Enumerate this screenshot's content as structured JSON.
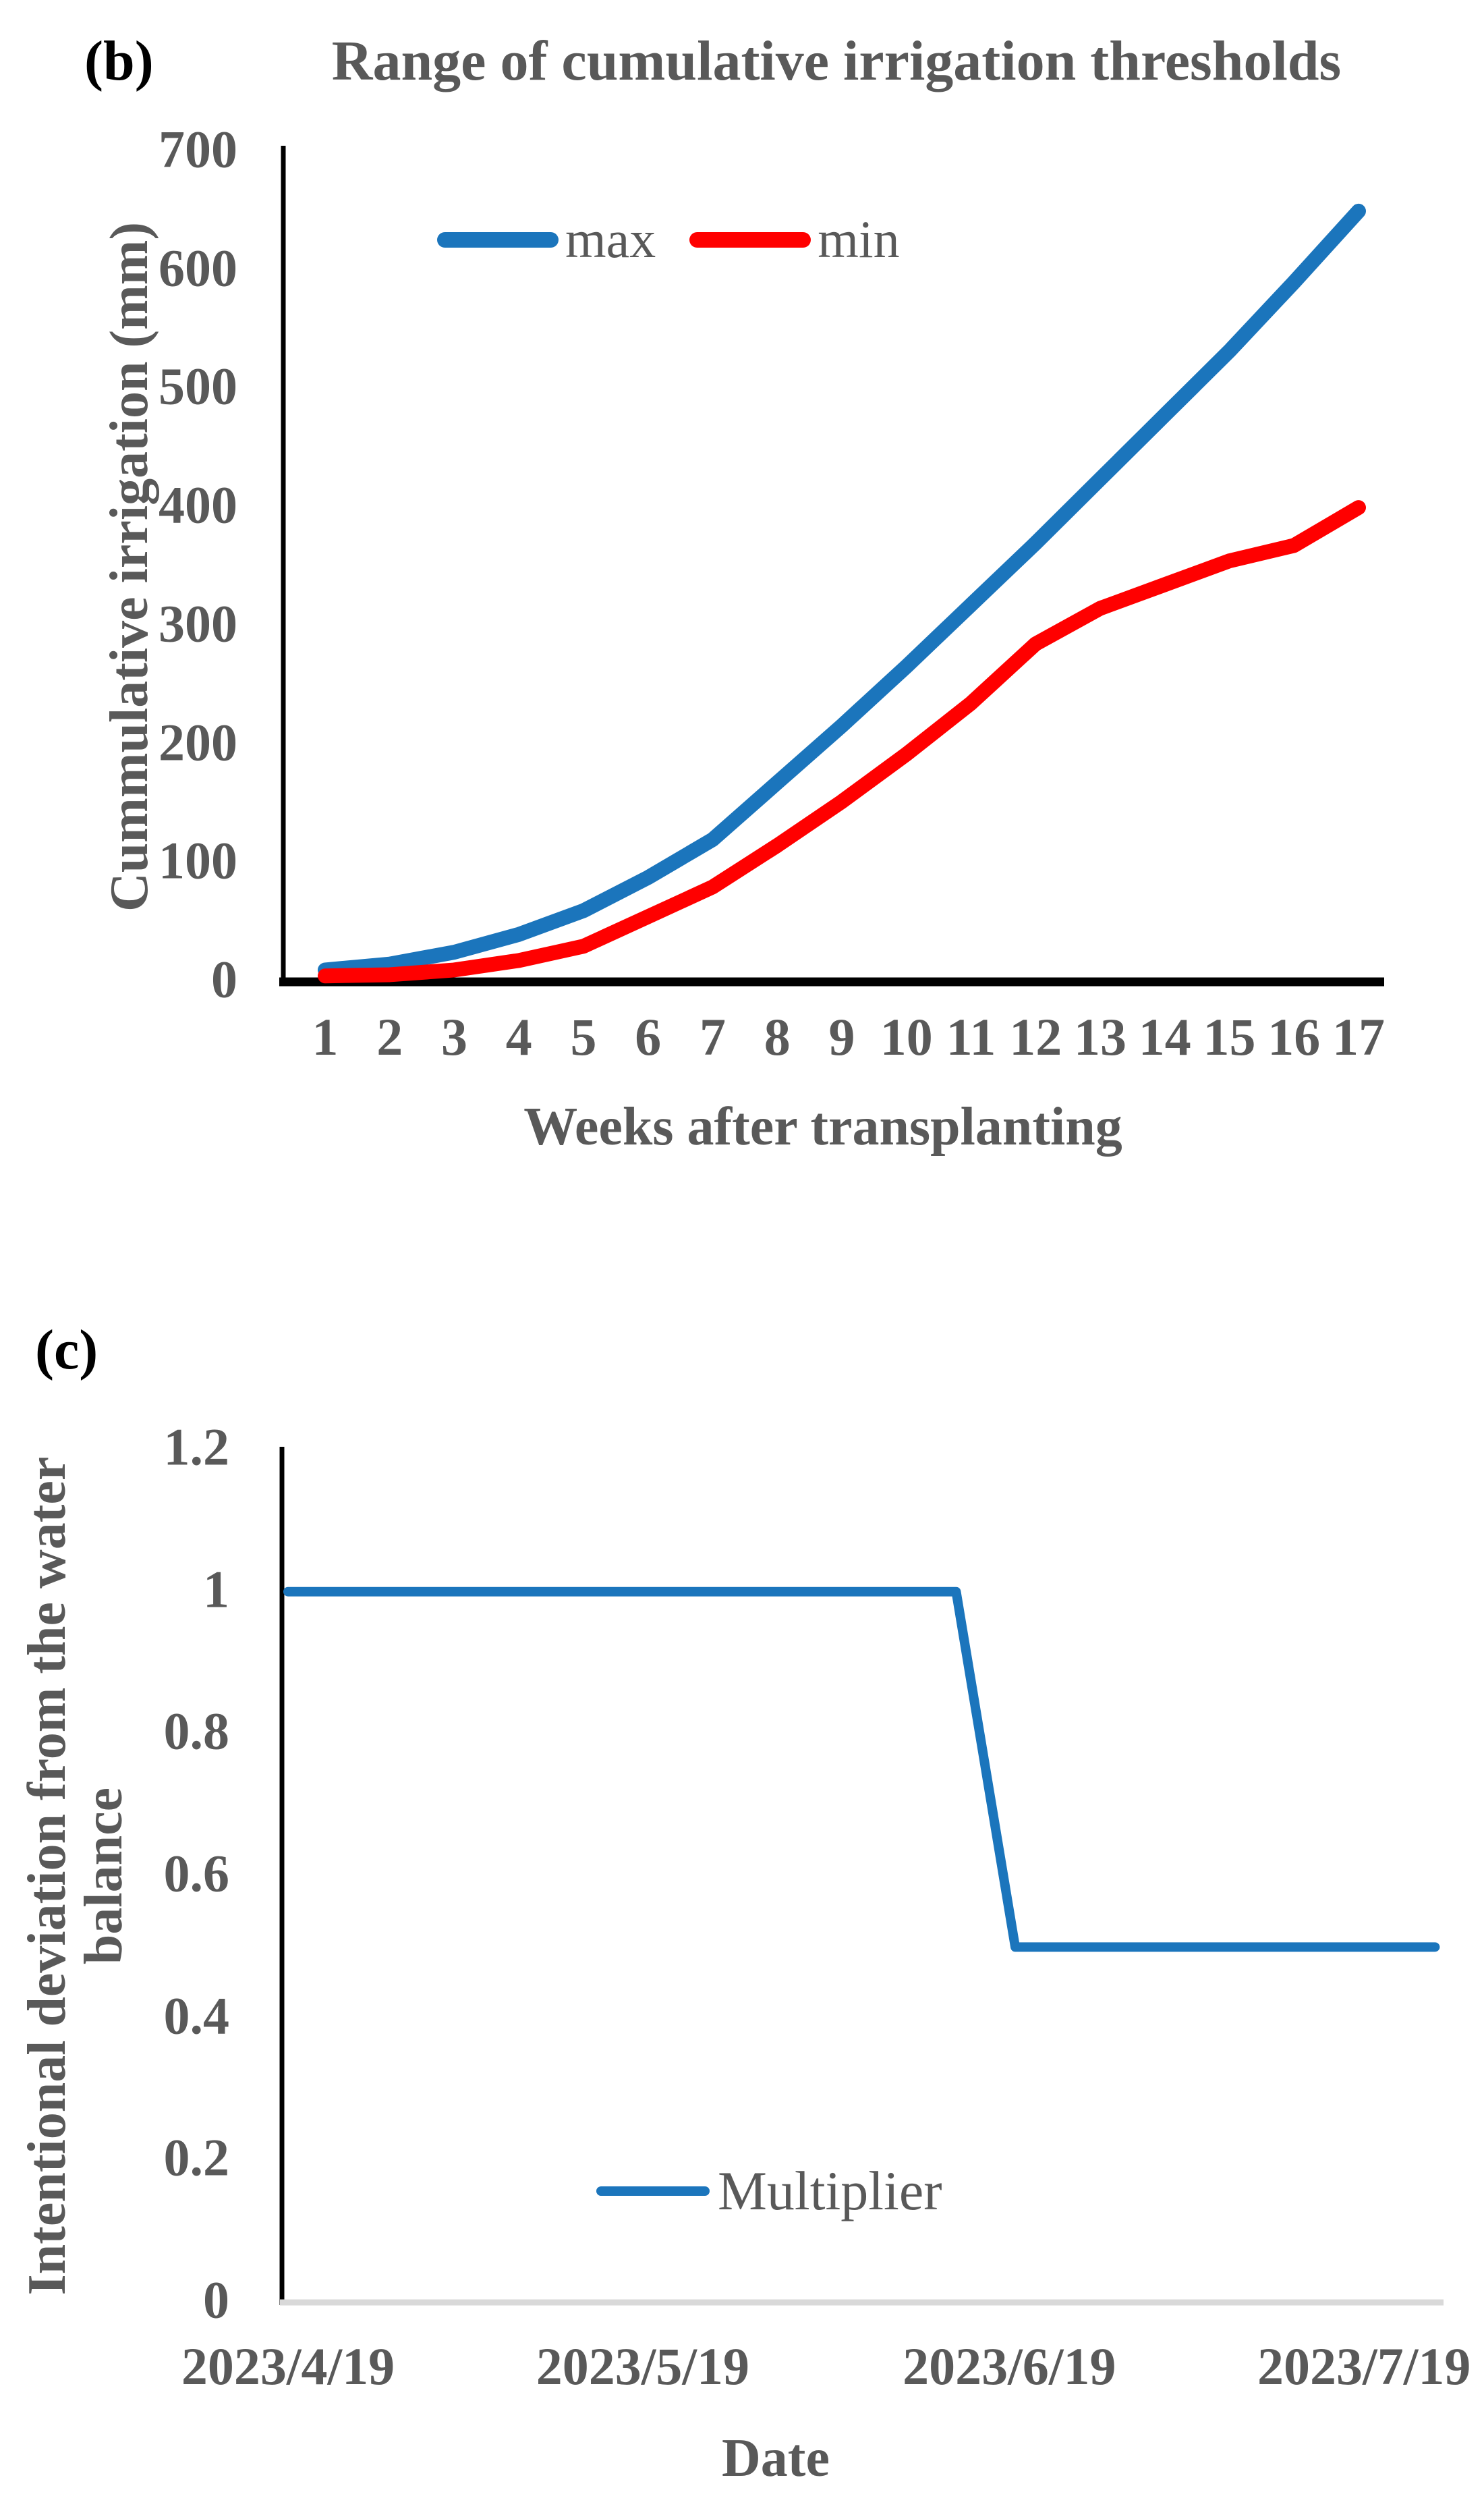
{
  "colors": {
    "max_line": "#1B75BC",
    "min_line": "#FF0000",
    "multiplier_line": "#1B75BC",
    "text_gray": "#595959",
    "axis_black": "#000000",
    "axis_light_gray": "#D9D9D9"
  },
  "chart_b": {
    "panel_label": "(b)",
    "title": "Range of cumulative irrigation thresholds",
    "y_axis_label": "Cummulative irrigation (mm)",
    "x_axis_label": "Weeks after transplanting",
    "y_ticks": [
      "700",
      "600",
      "500",
      "400",
      "300",
      "200",
      "100",
      "0"
    ],
    "x_ticks": [
      "1",
      "2",
      "3",
      "4",
      "5",
      "6",
      "7",
      "8",
      "9",
      "10",
      "11",
      "12",
      "13",
      "14",
      "15",
      "16",
      "17"
    ],
    "legend": [
      {
        "label": "max",
        "color": "#1B75BC"
      },
      {
        "label": "min",
        "color": "#FF0000"
      }
    ]
  },
  "chart_c": {
    "panel_label": "(c)",
    "y_axis_label_line1": "Intentional deviation from the water",
    "y_axis_label_line2": "balance",
    "x_axis_label": "Date",
    "y_ticks": [
      "1.2",
      "1",
      "0.8",
      "0.6",
      "0.4",
      "0.2",
      "0"
    ],
    "x_ticks": [
      {
        "label": "2023/4/19",
        "day": 0
      },
      {
        "label": "2023/5/19",
        "day": 30
      },
      {
        "label": "2023/6/19",
        "day": 61
      },
      {
        "label": "2023/7/19",
        "day": 91
      }
    ],
    "legend": [
      {
        "label": "Multiplier",
        "color": "#1B75BC"
      }
    ]
  },
  "chart_data": [
    {
      "type": "line",
      "title": "Range of cumulative irrigation thresholds",
      "xlabel": "Weeks after transplanting",
      "ylabel": "Cummulative irrigation (mm)",
      "categories": [
        1,
        2,
        3,
        4,
        5,
        6,
        7,
        8,
        9,
        10,
        11,
        12,
        13,
        14,
        15,
        16,
        17
      ],
      "ylim": [
        0,
        700
      ],
      "y_tick_step": 100,
      "grid": false,
      "legend_position": "inside-top-center",
      "series": [
        {
          "name": "max",
          "color": "#1B75BC",
          "values": [
            10,
            15,
            25,
            40,
            60,
            88,
            120,
            168,
            216,
            266,
            318,
            370,
            424,
            478,
            532,
            590,
            650
          ]
        },
        {
          "name": "min",
          "color": "#FF0000",
          "values": [
            5,
            6,
            10,
            18,
            30,
            55,
            80,
            115,
            152,
            192,
            235,
            285,
            315,
            335,
            355,
            368,
            400
          ]
        }
      ]
    },
    {
      "type": "line",
      "title": "",
      "xlabel": "Date",
      "ylabel": "Intentional deviation from the water balance",
      "x_axis_type": "date",
      "x_range_labels": [
        "2023/4/19",
        "2023/7/19"
      ],
      "ylim": [
        0,
        1.2
      ],
      "y_tick_step": 0.2,
      "grid": false,
      "legend_position": "inside-bottom-center",
      "series": [
        {
          "name": "Multiplier",
          "color": "#1B75BC",
          "points": [
            {
              "day": 0,
              "date": "2023/4/19",
              "value": 1
            },
            {
              "day": 56.5,
              "date": "2023/6/14",
              "value": 1
            },
            {
              "day": 61.5,
              "date": "2023/6/19",
              "value": 0.5
            },
            {
              "day": 97,
              "date": "2023/7/25",
              "value": 0.5
            }
          ]
        }
      ]
    }
  ]
}
